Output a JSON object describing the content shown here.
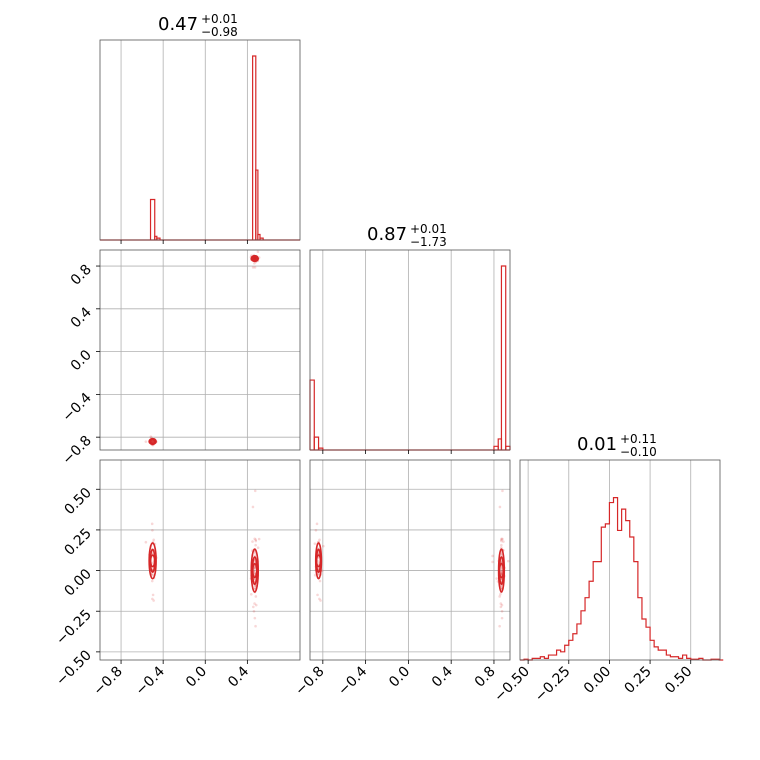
{
  "colors": {
    "accent": "#d62728",
    "grid": "#b0b0b0",
    "frame": "#555555"
  },
  "chart_data": {
    "type": "corner",
    "parameters": [
      {
        "median": "0.47",
        "err_plus": "+0.01",
        "err_minus": "−0.98"
      },
      {
        "median": "0.87",
        "err_plus": "+0.01",
        "err_minus": "−1.73"
      },
      {
        "median": "0.01",
        "err_plus": "+0.11",
        "err_minus": "−0.10"
      }
    ],
    "axes_ranges": {
      "p0": [
        -1.0,
        0.9
      ],
      "p1": [
        -0.92,
        0.95
      ],
      "p2": [
        -0.55,
        0.68
      ]
    },
    "ticks": {
      "p0": {
        "values": [
          -0.8,
          -0.4,
          0.0,
          0.4
        ],
        "labels": [
          "−0.8",
          "−0.4",
          "0.0",
          "0.4"
        ]
      },
      "p1": {
        "values": [
          -0.8,
          -0.4,
          0.0,
          0.4,
          0.8
        ],
        "labels": [
          "−0.8",
          "−0.4",
          "0.0",
          "0.4",
          "0.8"
        ]
      },
      "p2": {
        "values": [
          -0.5,
          -0.25,
          0.0,
          0.25,
          0.5
        ],
        "labels": [
          "−0.50",
          "−0.25",
          "0.00",
          "0.25",
          "0.50"
        ]
      }
    },
    "hist_p0": [
      {
        "x0": -0.52,
        "x1": -0.48,
        "h": 0.22
      },
      {
        "x0": -0.48,
        "x1": -0.46,
        "h": 0.02
      },
      {
        "x0": -0.46,
        "x1": -0.43,
        "h": 0.01
      },
      {
        "x0": 0.45,
        "x1": 0.48,
        "h": 1.0
      },
      {
        "x0": 0.48,
        "x1": 0.5,
        "h": 0.38
      },
      {
        "x0": 0.5,
        "x1": 0.52,
        "h": 0.03
      },
      {
        "x0": 0.52,
        "x1": 0.55,
        "h": 0.01
      }
    ],
    "hist_p1": [
      {
        "x0": -0.92,
        "x1": -0.88,
        "h": 0.38
      },
      {
        "x0": -0.88,
        "x1": -0.84,
        "h": 0.07
      },
      {
        "x0": -0.84,
        "x1": -0.8,
        "h": 0.01
      },
      {
        "x0": 0.8,
        "x1": 0.84,
        "h": 0.02
      },
      {
        "x0": 0.84,
        "x1": 0.87,
        "h": 0.06
      },
      {
        "x0": 0.87,
        "x1": 0.91,
        "h": 1.0
      },
      {
        "x0": 0.91,
        "x1": 0.95,
        "h": 0.02
      }
    ],
    "hist_p2": {
      "x0": -0.55,
      "dx": 0.025,
      "h": [
        0.0,
        0.005,
        0.0,
        0.01,
        0.01,
        0.02,
        0.01,
        0.03,
        0.03,
        0.06,
        0.05,
        0.09,
        0.12,
        0.16,
        0.22,
        0.3,
        0.38,
        0.48,
        0.6,
        0.6,
        0.81,
        0.83,
        0.96,
        0.99,
        0.79,
        0.92,
        0.85,
        0.75,
        0.6,
        0.38,
        0.25,
        0.2,
        0.12,
        0.08,
        0.06,
        0.06,
        0.03,
        0.02,
        0.02,
        0.01,
        0.03,
        0.01,
        0.005,
        0.005,
        0.01,
        0.0,
        0.0,
        0.005,
        0.005,
        0.0
      ]
    },
    "clusters": [
      {
        "p0": -0.5,
        "p1": -0.84,
        "p2": 0.06,
        "s0": 0.015,
        "s1": 0.012,
        "s2": 0.05,
        "n": 45
      },
      {
        "p0": 0.47,
        "p1": 0.87,
        "p2": 0.0,
        "s0": 0.015,
        "s1": 0.012,
        "s2": 0.06,
        "n": 90
      }
    ],
    "grid": true
  }
}
